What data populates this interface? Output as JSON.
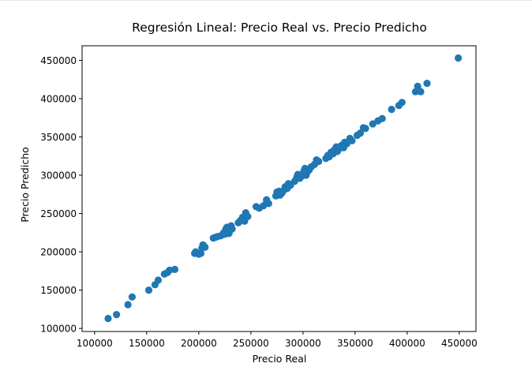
{
  "chart_data": {
    "type": "scatter",
    "title": "Regresión Lineal: Precio Real vs. Precio Predicho",
    "xlabel": "Precio Real",
    "ylabel": "Precio Predicho",
    "xlim": [
      88000,
      466000
    ],
    "ylim": [
      96000,
      469000
    ],
    "xticks": [
      100000,
      150000,
      200000,
      250000,
      300000,
      350000,
      400000,
      450000
    ],
    "yticks": [
      100000,
      150000,
      200000,
      250000,
      300000,
      350000,
      400000,
      450000
    ],
    "xtick_labels": [
      "100000",
      "150000",
      "200000",
      "250000",
      "300000",
      "350000",
      "400000",
      "450000"
    ],
    "ytick_labels": [
      "100000",
      "150000",
      "200000",
      "250000",
      "300000",
      "350000",
      "400000",
      "450000"
    ],
    "grid": false,
    "marker_color": "#1f77b4",
    "points": [
      [
        113000,
        113000
      ],
      [
        121000,
        118000
      ],
      [
        132000,
        131000
      ],
      [
        136000,
        141000
      ],
      [
        152000,
        150000
      ],
      [
        158000,
        157000
      ],
      [
        161000,
        163000
      ],
      [
        167000,
        171000
      ],
      [
        170000,
        173000
      ],
      [
        172000,
        176000
      ],
      [
        177000,
        177000
      ],
      [
        196000,
        198000
      ],
      [
        197000,
        200000
      ],
      [
        200000,
        197000
      ],
      [
        202000,
        198000
      ],
      [
        203000,
        205000
      ],
      [
        204000,
        209000
      ],
      [
        206000,
        206000
      ],
      [
        214000,
        218000
      ],
      [
        216000,
        219000
      ],
      [
        218000,
        220000
      ],
      [
        221000,
        221000
      ],
      [
        224000,
        225000
      ],
      [
        225000,
        223000
      ],
      [
        226000,
        230000
      ],
      [
        227000,
        232000
      ],
      [
        228000,
        226000
      ],
      [
        229000,
        224000
      ],
      [
        230000,
        228000
      ],
      [
        231000,
        234000
      ],
      [
        232000,
        230000
      ],
      [
        238000,
        238000
      ],
      [
        240000,
        241000
      ],
      [
        242000,
        245000
      ],
      [
        244000,
        240000
      ],
      [
        245000,
        251000
      ],
      [
        247000,
        246000
      ],
      [
        255000,
        259000
      ],
      [
        258000,
        257000
      ],
      [
        262000,
        260000
      ],
      [
        265000,
        264000
      ],
      [
        265000,
        268000
      ],
      [
        267000,
        263000
      ],
      [
        274000,
        273000
      ],
      [
        275000,
        278000
      ],
      [
        276000,
        275000
      ],
      [
        277000,
        279000
      ],
      [
        278000,
        274000
      ],
      [
        279000,
        276000
      ],
      [
        280000,
        277000
      ],
      [
        282000,
        281000
      ],
      [
        283000,
        285000
      ],
      [
        285000,
        283000
      ],
      [
        286000,
        289000
      ],
      [
        288000,
        287000
      ],
      [
        292000,
        292000
      ],
      [
        294000,
        297000
      ],
      [
        295000,
        301000
      ],
      [
        297000,
        296000
      ],
      [
        299000,
        299000
      ],
      [
        300000,
        302000
      ],
      [
        301000,
        306000
      ],
      [
        302000,
        309000
      ],
      [
        303000,
        300000
      ],
      [
        304000,
        304000
      ],
      [
        306000,
        307000
      ],
      [
        308000,
        311000
      ],
      [
        311000,
        314000
      ],
      [
        313000,
        320000
      ],
      [
        315000,
        318000
      ],
      [
        322000,
        322000
      ],
      [
        324000,
        326000
      ],
      [
        325000,
        324000
      ],
      [
        327000,
        330000
      ],
      [
        329000,
        328000
      ],
      [
        330000,
        333000
      ],
      [
        332000,
        337000
      ],
      [
        333000,
        331000
      ],
      [
        335000,
        335000
      ],
      [
        337000,
        339000
      ],
      [
        339000,
        336000
      ],
      [
        340000,
        343000
      ],
      [
        342000,
        341000
      ],
      [
        345000,
        348000
      ],
      [
        347000,
        345000
      ],
      [
        352000,
        352000
      ],
      [
        355000,
        355000
      ],
      [
        358000,
        362000
      ],
      [
        360000,
        361000
      ],
      [
        367000,
        367000
      ],
      [
        372000,
        371000
      ],
      [
        376000,
        374000
      ],
      [
        385000,
        386000
      ],
      [
        392000,
        391000
      ],
      [
        395000,
        395000
      ],
      [
        408000,
        409000
      ],
      [
        410000,
        416000
      ],
      [
        411000,
        411000
      ],
      [
        413000,
        409000
      ],
      [
        419000,
        420000
      ],
      [
        449000,
        453000
      ]
    ]
  }
}
